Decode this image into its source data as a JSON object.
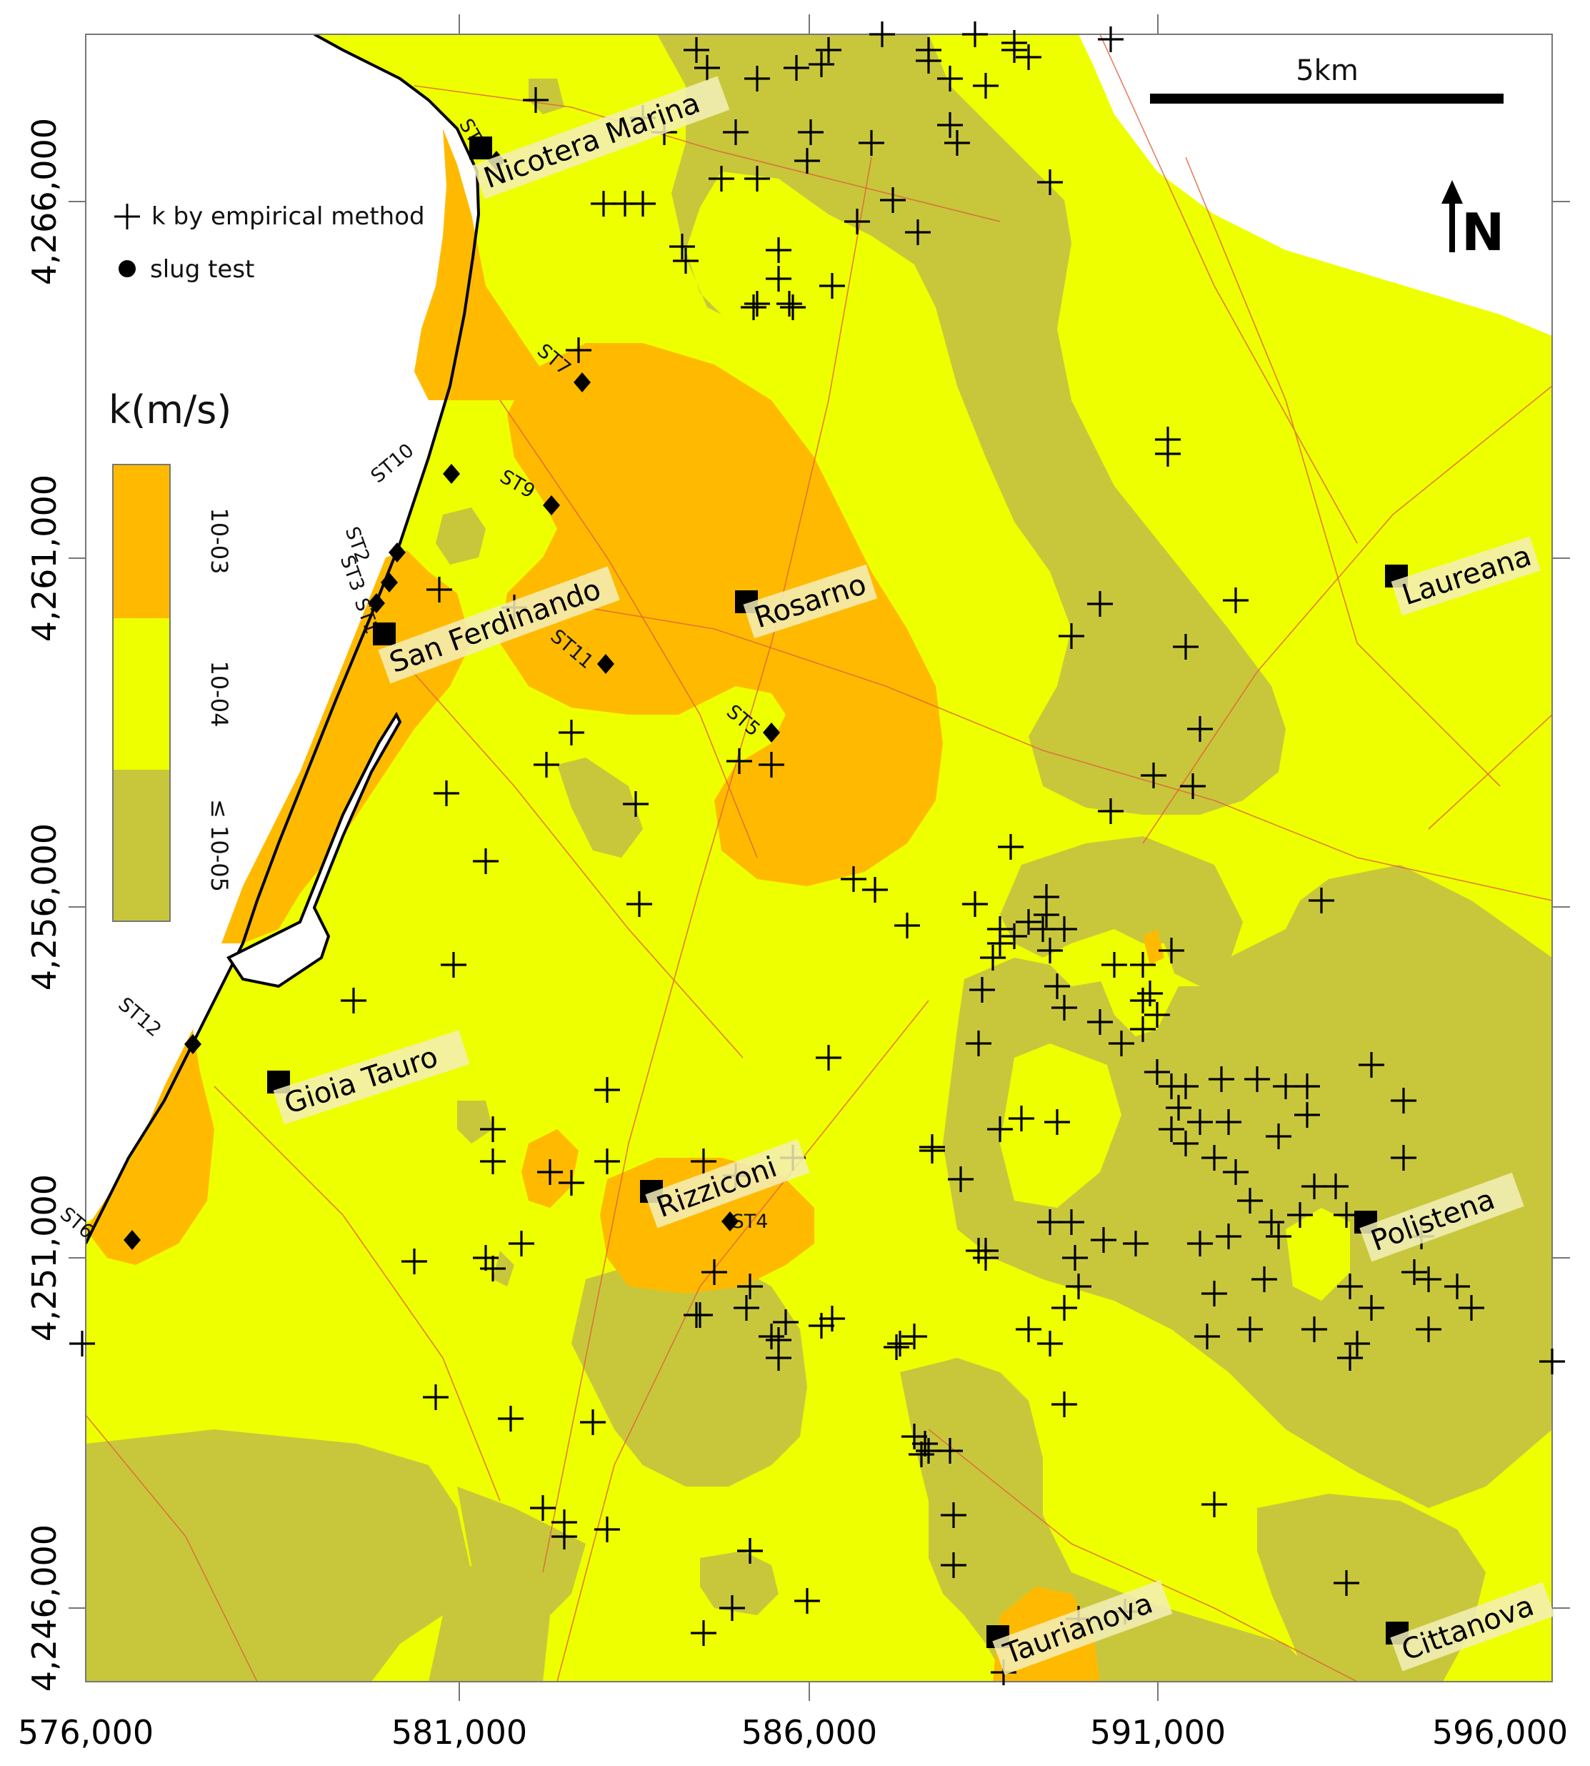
{
  "map": {
    "x_axis": {
      "ticks": [
        "576,000",
        "581,000",
        "586,000",
        "591,000",
        "596,000"
      ]
    },
    "y_axis": {
      "ticks": [
        "4,266,000",
        "4,261,000",
        "4,256,000",
        "4,251,000",
        "4,246,000"
      ]
    },
    "scale_bar": {
      "label": "5km"
    },
    "north_arrow": {
      "label": "N",
      "icon": "north-arrow-icon"
    },
    "legend": {
      "items": [
        {
          "label": "k by empirical method",
          "icon": "plus-icon"
        },
        {
          "label": "slug test",
          "icon": "dot-icon"
        }
      ],
      "title": "k(m/s)",
      "classes": [
        {
          "label": "10-03",
          "color": "#ffba00"
        },
        {
          "label": "10-04",
          "color": "#eeff00"
        },
        {
          "label": "≤ 10-05",
          "color": "#c8c73c"
        }
      ]
    },
    "towns": [
      {
        "name": "Nicotera Marina"
      },
      {
        "name": "San Ferdinando"
      },
      {
        "name": "Rosarno"
      },
      {
        "name": "Laureana"
      },
      {
        "name": "Gioia Tauro"
      },
      {
        "name": "Rizziconi"
      },
      {
        "name": "Polistena"
      },
      {
        "name": "Taurianova"
      },
      {
        "name": "Cittanova"
      }
    ],
    "slug_tests": [
      "ST1",
      "ST2",
      "ST3",
      "ST4",
      "ST5",
      "ST6",
      "ST7",
      "ST8",
      "ST9",
      "ST10",
      "ST11",
      "ST12"
    ],
    "colors": {
      "high": "#ffba00",
      "medium": "#eeff00",
      "low": "#c8c73c",
      "sea": "#ffffff",
      "road": "#e0603a"
    }
  }
}
